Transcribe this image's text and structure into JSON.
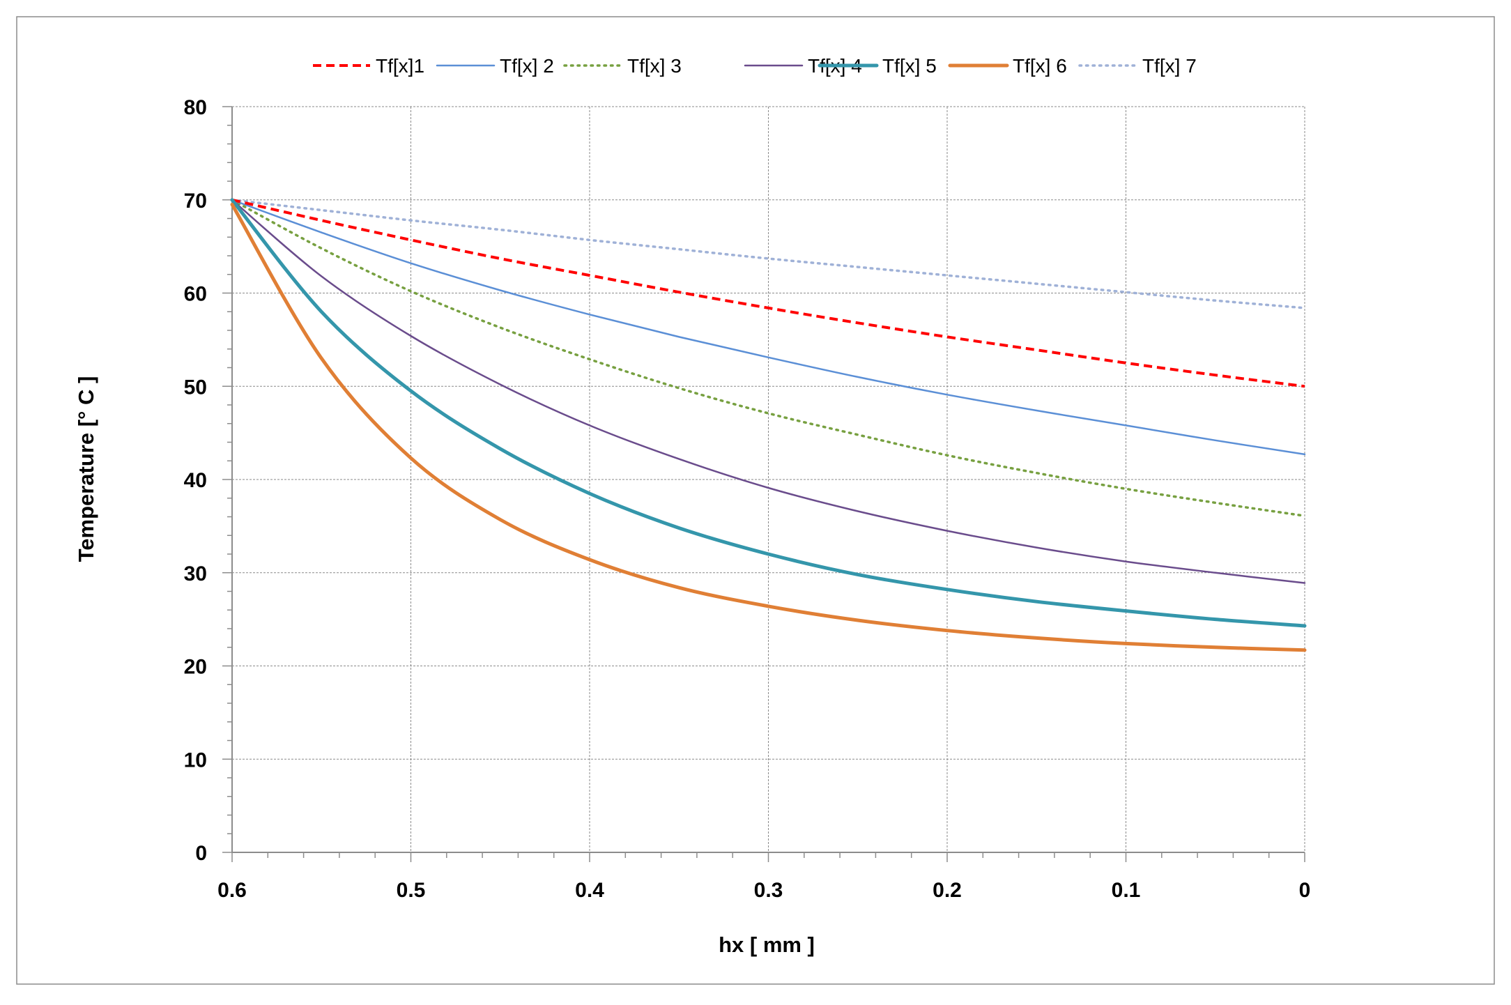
{
  "chart_data": {
    "type": "line",
    "title": "",
    "xlabel": "hx [ mm ]",
    "ylabel": "Temperature [° C ]",
    "xlim": [
      0.6,
      0
    ],
    "ylim": [
      0,
      80
    ],
    "x_ticks": [
      0.6,
      0.5,
      0.4,
      0.3,
      0.2,
      0.1,
      0
    ],
    "x_tick_labels": [
      "0.6",
      "0.5",
      "0.4",
      "0.3",
      "0.2",
      "0.1",
      "0"
    ],
    "y_ticks": [
      0,
      10,
      20,
      30,
      40,
      50,
      60,
      70,
      80
    ],
    "y_tick_labels": [
      "0",
      "10",
      "20",
      "30",
      "40",
      "50",
      "60",
      "70",
      "80"
    ],
    "grid": true,
    "legend_position": "top",
    "x": [
      0.6,
      0.55,
      0.5,
      0.45,
      0.4,
      0.35,
      0.3,
      0.25,
      0.2,
      0.15,
      0.1,
      0.05,
      0
    ],
    "series": [
      {
        "name": "Tf[x]1",
        "color": "#ff0000",
        "style": "dashed",
        "values": [
          70,
          67.8,
          65.7,
          63.7,
          61.9,
          60.1,
          58.4,
          56.8,
          55.3,
          53.9,
          52.5,
          51.2,
          50.0
        ]
      },
      {
        "name": "Tf[x] 2",
        "color": "#5b8fd6",
        "style": "solid",
        "values": [
          70,
          66.5,
          63.2,
          60.3,
          57.7,
          55.3,
          53.1,
          51.0,
          49.1,
          47.4,
          45.8,
          44.2,
          42.7
        ]
      },
      {
        "name": "Tf[x] 3",
        "color": "#77a040",
        "style": "dotted",
        "values": [
          70,
          64.8,
          60.2,
          56.3,
          52.9,
          49.8,
          47.1,
          44.8,
          42.6,
          40.7,
          39.0,
          37.5,
          36.1
        ]
      },
      {
        "name": "Tf[x] 4",
        "color": "#6a4c8c",
        "style": "solid",
        "values": [
          70,
          61.8,
          55.4,
          50.2,
          45.8,
          42.2,
          39.1,
          36.6,
          34.5,
          32.7,
          31.2,
          30.0,
          28.9
        ]
      },
      {
        "name": "Tf[x] 5",
        "color": "#3496ab",
        "style": "solid-thick",
        "values": [
          70,
          58.0,
          49.5,
          43.3,
          38.5,
          34.8,
          32.0,
          29.8,
          28.2,
          26.9,
          25.9,
          25.0,
          24.3
        ]
      },
      {
        "name": "Tf[x] 6",
        "color": "#e07f35",
        "style": "solid-thick",
        "values": [
          69.5,
          53.0,
          42.3,
          35.7,
          31.4,
          28.4,
          26.4,
          24.9,
          23.8,
          23.0,
          22.4,
          22.0,
          21.7
        ]
      },
      {
        "name": "Tf[x] 7",
        "color": "#9fb1d7",
        "style": "dotted",
        "values": [
          70,
          68.9,
          67.8,
          66.8,
          65.7,
          64.7,
          63.7,
          62.8,
          61.9,
          61.0,
          60.1,
          59.2,
          58.4
        ]
      }
    ]
  }
}
